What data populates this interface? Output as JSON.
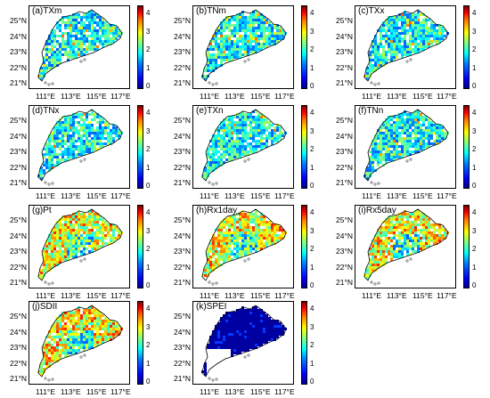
{
  "panels": [
    {
      "label": "(a)TXm",
      "regime": "temp"
    },
    {
      "label": "(b)TNm",
      "regime": "temp"
    },
    {
      "label": "(c)TXx",
      "regime": "temp"
    },
    {
      "label": "(d)TNx",
      "regime": "temp"
    },
    {
      "label": "(e)TXn",
      "regime": "temp"
    },
    {
      "label": "(f)TNn",
      "regime": "temp"
    },
    {
      "label": "(g)Pt",
      "regime": "precip"
    },
    {
      "label": "(h)Rx1day",
      "regime": "precip"
    },
    {
      "label": "(i)Rx5day",
      "regime": "precip"
    },
    {
      "label": "(j)SDII",
      "regime": "precip"
    },
    {
      "label": "(k)SPEI",
      "regime": "spei"
    }
  ],
  "lat_labels": [
    "25°N",
    "24°N",
    "23°N",
    "22°N",
    "21°N"
  ],
  "lon_labels": [
    "111°E",
    "113°E",
    "115°E",
    "117°E"
  ],
  "colorbar": {
    "ticks": [
      "4",
      "3",
      "2",
      "1",
      "0"
    ],
    "min": 0,
    "max": 4.6
  },
  "colors": {
    "low": "#00008f",
    "mid": "#80ff80",
    "high": "#800000",
    "frame": "#000000"
  }
}
